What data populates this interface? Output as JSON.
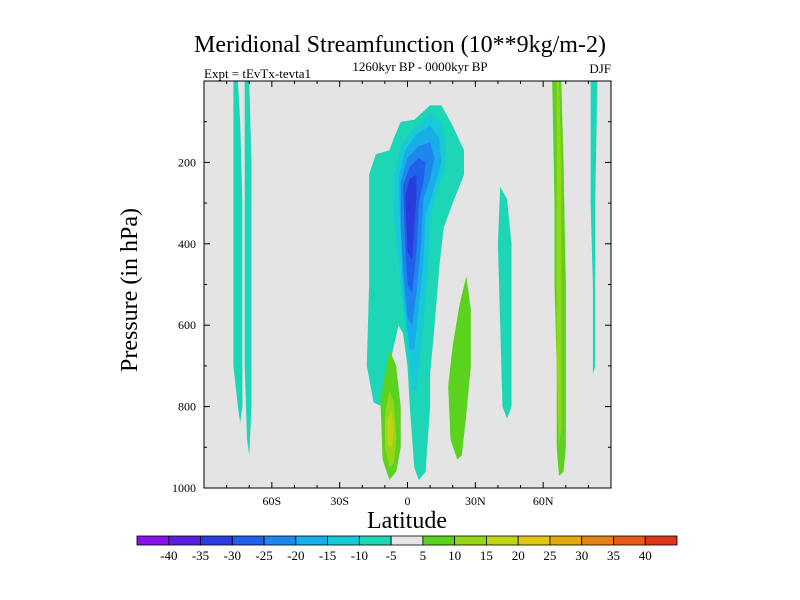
{
  "chart_data": {
    "type": "contour",
    "title": "Meridional Streamfunction (10**9kg/m-2)",
    "experiment_label": "Expt = tEvTx-tevta1",
    "period_label": "1260kyr BP - 0000kyr BP",
    "season_label": "DJF",
    "xlabel": "Latitude",
    "ylabel": "Pressure (in hPa)",
    "xlim": [
      -90,
      90
    ],
    "ylim": [
      0,
      1000
    ],
    "y_inverted": true,
    "x_ticks": [
      {
        "value": -60,
        "label": "60S"
      },
      {
        "value": -30,
        "label": "30S"
      },
      {
        "value": 0,
        "label": "0"
      },
      {
        "value": 30,
        "label": "30N"
      },
      {
        "value": 60,
        "label": "60N"
      }
    ],
    "y_ticks": [
      {
        "value": 200,
        "label": "200"
      },
      {
        "value": 400,
        "label": "400"
      },
      {
        "value": 600,
        "label": "600"
      },
      {
        "value": 800,
        "label": "800"
      },
      {
        "value": 1000,
        "label": "1000"
      }
    ],
    "colorbar": {
      "levels": [
        "-40",
        "-35",
        "-30",
        "-25",
        "-20",
        "-15",
        "-10",
        "-5",
        "5",
        "10",
        "15",
        "20",
        "25",
        "30",
        "35",
        "40"
      ],
      "colors": [
        "#8a12e8",
        "#5a1ee0",
        "#2a3cdc",
        "#2060e8",
        "#1e86ec",
        "#18aeea",
        "#18cad8",
        "#1cd6b6",
        "#e4e4e4",
        "#5ad21e",
        "#96d618",
        "#c0d414",
        "#e0c812",
        "#e4a812",
        "#e48418",
        "#e45a1c",
        "#dc3618"
      ]
    },
    "background_color": "#e4e4e4",
    "features": [
      {
        "name": "sh-polar-cell-west",
        "value": -7,
        "color": "#1cd6b6",
        "points": [
          [
            -77,
            0
          ],
          [
            -75,
            0
          ],
          [
            -74,
            100
          ],
          [
            -73,
            300
          ],
          [
            -73,
            500
          ],
          [
            -73,
            700
          ],
          [
            -73,
            800
          ],
          [
            -74,
            840
          ],
          [
            -75,
            800
          ],
          [
            -77,
            700
          ],
          [
            -77,
            400
          ]
        ]
      },
      {
        "name": "sh-polar-cell-east",
        "value": -7,
        "color": "#1cd6b6",
        "points": [
          [
            -72,
            0
          ],
          [
            -70,
            0
          ],
          [
            -69,
            200
          ],
          [
            -69,
            500
          ],
          [
            -69,
            800
          ],
          [
            -70,
            920
          ],
          [
            -71,
            880
          ],
          [
            -72,
            700
          ],
          [
            -72,
            300
          ]
        ]
      },
      {
        "name": "sh-tropical-negative-cell",
        "value": -7,
        "color": "#1cd6b6",
        "points": [
          [
            -17,
            230
          ],
          [
            -14,
            180
          ],
          [
            -8,
            170
          ],
          [
            -6,
            140
          ],
          [
            -3,
            100
          ],
          [
            3,
            95
          ],
          [
            10,
            60
          ],
          [
            15,
            60
          ],
          [
            20,
            110
          ],
          [
            25,
            170
          ],
          [
            25,
            230
          ],
          [
            20,
            300
          ],
          [
            16,
            360
          ],
          [
            14,
            460
          ],
          [
            12,
            600
          ],
          [
            10,
            720
          ],
          [
            10,
            800
          ],
          [
            8,
            960
          ],
          [
            5,
            980
          ],
          [
            3,
            950
          ],
          [
            1,
            800
          ],
          [
            0,
            700
          ],
          [
            -2,
            620
          ],
          [
            -4,
            600
          ],
          [
            -8,
            700
          ],
          [
            -11,
            800
          ],
          [
            -15,
            790
          ],
          [
            -18,
            700
          ],
          [
            -17,
            500
          ]
        ]
      },
      {
        "name": "hadley-core-1",
        "value": -12,
        "color": "#18cad8",
        "points": [
          [
            -6,
            240
          ],
          [
            -3,
            160
          ],
          [
            3,
            115
          ],
          [
            10,
            80
          ],
          [
            15,
            100
          ],
          [
            17,
            160
          ],
          [
            16,
            220
          ],
          [
            13,
            270
          ],
          [
            10,
            340
          ],
          [
            9,
            460
          ],
          [
            7,
            600
          ],
          [
            4,
            760
          ],
          [
            2,
            760
          ],
          [
            -1,
            600
          ],
          [
            -4,
            450
          ],
          [
            -6,
            330
          ]
        ]
      },
      {
        "name": "hadley-core-2",
        "value": -17,
        "color": "#18aeea",
        "points": [
          [
            -4,
            240
          ],
          [
            -1,
            170
          ],
          [
            4,
            130
          ],
          [
            10,
            110
          ],
          [
            14,
            140
          ],
          [
            15,
            200
          ],
          [
            12,
            260
          ],
          [
            8,
            330
          ],
          [
            7,
            450
          ],
          [
            5,
            560
          ],
          [
            3,
            660
          ],
          [
            1,
            660
          ],
          [
            -2,
            520
          ],
          [
            -3,
            380
          ]
        ]
      },
      {
        "name": "hadley-core-3",
        "value": -22,
        "color": "#1e86ec",
        "points": [
          [
            -3,
            250
          ],
          [
            0,
            190
          ],
          [
            5,
            160
          ],
          [
            10,
            150
          ],
          [
            12,
            190
          ],
          [
            10,
            240
          ],
          [
            7,
            290
          ],
          [
            6,
            400
          ],
          [
            4,
            520
          ],
          [
            2,
            600
          ],
          [
            0,
            580
          ],
          [
            -2,
            460
          ],
          [
            -3,
            350
          ]
        ]
      },
      {
        "name": "hadley-core-4",
        "value": -27,
        "color": "#2060e8",
        "points": [
          [
            -2,
            260
          ],
          [
            1,
            210
          ],
          [
            5,
            190
          ],
          [
            8,
            200
          ],
          [
            7,
            250
          ],
          [
            5,
            300
          ],
          [
            4,
            420
          ],
          [
            2,
            520
          ],
          [
            0,
            500
          ],
          [
            -1,
            400
          ]
        ]
      },
      {
        "name": "hadley-core-5",
        "value": -32,
        "color": "#2a3cdc",
        "points": [
          [
            -1,
            280
          ],
          [
            1,
            240
          ],
          [
            4,
            230
          ],
          [
            4,
            280
          ],
          [
            3,
            360
          ],
          [
            2,
            440
          ],
          [
            0,
            420
          ]
        ]
      },
      {
        "name": "nh-positive-cell-west",
        "value": 7,
        "color": "#5ad21e",
        "points": [
          [
            -12,
            780
          ],
          [
            -10,
            720
          ],
          [
            -8,
            660
          ],
          [
            -5,
            700
          ],
          [
            -3,
            800
          ],
          [
            -3,
            900
          ],
          [
            -5,
            960
          ],
          [
            -8,
            980
          ],
          [
            -11,
            930
          ]
        ]
      },
      {
        "name": "nh-positive-cell-west-inner",
        "value": 12,
        "color": "#96d618",
        "points": [
          [
            -10,
            820
          ],
          [
            -8,
            760
          ],
          [
            -6,
            790
          ],
          [
            -5,
            880
          ],
          [
            -6,
            940
          ],
          [
            -8,
            950
          ],
          [
            -10,
            900
          ]
        ]
      },
      {
        "name": "nh-positive-cell-west-core",
        "value": 17,
        "color": "#c0d414",
        "points": [
          [
            -9,
            830
          ],
          [
            -7,
            810
          ],
          [
            -6,
            860
          ],
          [
            -7,
            900
          ],
          [
            -9,
            890
          ]
        ]
      },
      {
        "name": "nh-positive-cell-mid",
        "value": 7,
        "color": "#5ad21e",
        "points": [
          [
            18,
            750
          ],
          [
            20,
            650
          ],
          [
            23,
            550
          ],
          [
            26,
            480
          ],
          [
            28,
            560
          ],
          [
            28,
            700
          ],
          [
            26,
            820
          ],
          [
            24,
            920
          ],
          [
            22,
            930
          ],
          [
            19,
            880
          ]
        ]
      },
      {
        "name": "nh-ferrel-cell",
        "value": -7,
        "color": "#1cd6b6",
        "points": [
          [
            41,
            260
          ],
          [
            44,
            290
          ],
          [
            46,
            400
          ],
          [
            46,
            600
          ],
          [
            46,
            800
          ],
          [
            44,
            830
          ],
          [
            42,
            800
          ],
          [
            41,
            600
          ],
          [
            40,
            400
          ]
        ]
      },
      {
        "name": "nh-polar-cell",
        "value": 7,
        "color": "#5ad21e",
        "points": [
          [
            64,
            0
          ],
          [
            68,
            0
          ],
          [
            69,
            200
          ],
          [
            70,
            500
          ],
          [
            70,
            700
          ],
          [
            70,
            900
          ],
          [
            69,
            960
          ],
          [
            67,
            970
          ],
          [
            66,
            900
          ],
          [
            66,
            700
          ],
          [
            65,
            500
          ],
          [
            65,
            300
          ]
        ]
      },
      {
        "name": "nh-polar-cell-core",
        "value": 12,
        "color": "#96d618",
        "points": [
          [
            66,
            0
          ],
          [
            67,
            0
          ],
          [
            68,
            200
          ],
          [
            68,
            600
          ],
          [
            68,
            850
          ],
          [
            67,
            900
          ],
          [
            66,
            700
          ],
          [
            66,
            300
          ]
        ]
      },
      {
        "name": "nh-polar-cell-far",
        "value": -7,
        "color": "#1cd6b6",
        "points": [
          [
            81,
            0
          ],
          [
            84,
            0
          ],
          [
            83,
            300
          ],
          [
            83,
            500
          ],
          [
            83,
            700
          ],
          [
            82,
            720
          ],
          [
            82,
            500
          ],
          [
            81,
            300
          ]
        ]
      }
    ]
  }
}
